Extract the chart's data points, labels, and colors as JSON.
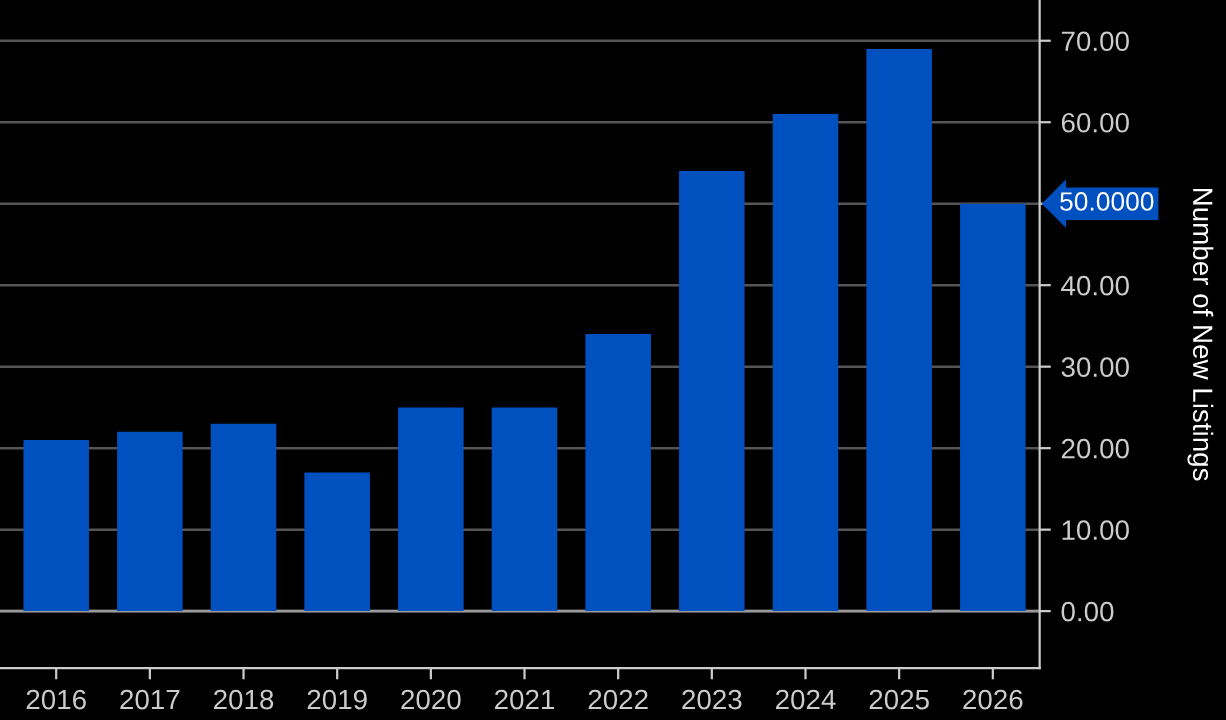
{
  "chart_data": {
    "type": "bar",
    "ylabel": "Number of New Listings",
    "categories": [
      "2016",
      "2017",
      "2018",
      "2019",
      "2020",
      "2021",
      "2022",
      "2023",
      "2024",
      "2025",
      "2026"
    ],
    "values": [
      21,
      22,
      23,
      17,
      25,
      25,
      34,
      54,
      61,
      69,
      50
    ],
    "color": "#0050bf",
    "ylim": [
      -7,
      75
    ],
    "yticks": [
      {
        "value": 0,
        "label": "0.00"
      },
      {
        "value": 10,
        "label": "10.00"
      },
      {
        "value": 20,
        "label": "20.00"
      },
      {
        "value": 30,
        "label": "30.00"
      },
      {
        "value": 40,
        "label": "40.00"
      },
      {
        "value": 50,
        "label": null
      },
      {
        "value": 60,
        "label": "60.00"
      },
      {
        "value": 70,
        "label": "70.00"
      }
    ],
    "grid": "y",
    "annotations": [
      {
        "text": "50.0000",
        "x": "2026",
        "y": 50
      }
    ]
  }
}
